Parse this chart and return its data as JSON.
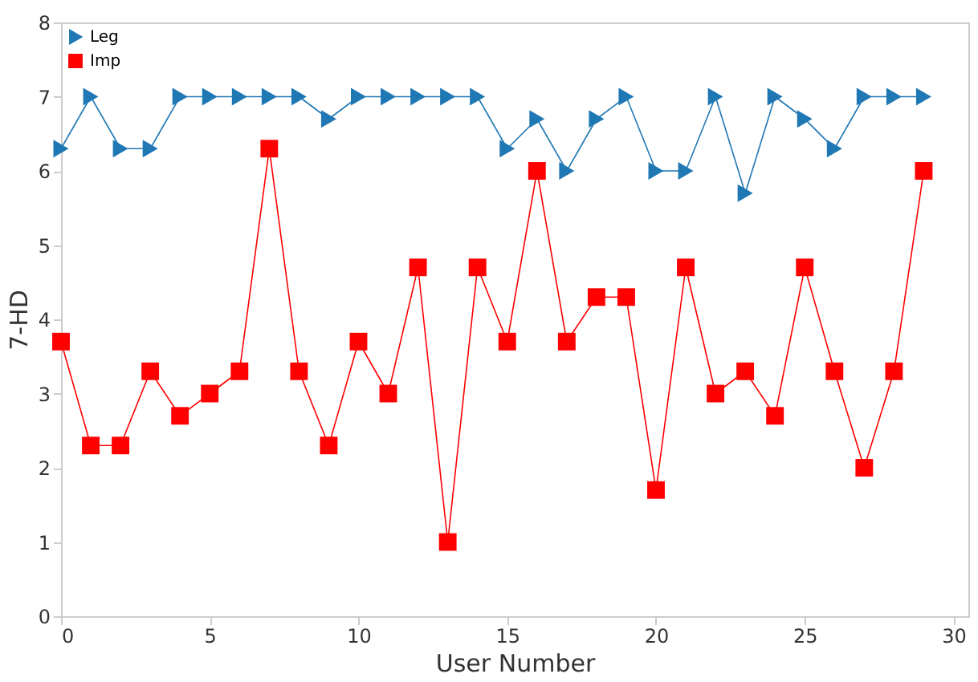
{
  "chart_data": {
    "type": "line",
    "xlabel": "User Number",
    "ylabel": "7-HD",
    "x": [
      0,
      1,
      2,
      3,
      4,
      5,
      6,
      7,
      8,
      9,
      10,
      11,
      12,
      13,
      14,
      15,
      16,
      17,
      18,
      19,
      20,
      21,
      22,
      23,
      24,
      25,
      26,
      27,
      28,
      29
    ],
    "series": [
      {
        "name": "Leg",
        "color": "#1f77b4",
        "marker": "triangle",
        "values": [
          6.3,
          7,
          6.3,
          6.3,
          7,
          7,
          7,
          7,
          7,
          6.7,
          7,
          7,
          7,
          7,
          7,
          6.3,
          6.7,
          6,
          6.7,
          7,
          6,
          6,
          7,
          5.7,
          7,
          6.7,
          6.3,
          7,
          7,
          7
        ]
      },
      {
        "name": "Imp",
        "color": "#ff0000",
        "marker": "square",
        "values": [
          3.7,
          2.3,
          2.3,
          3.3,
          2.7,
          3,
          3.3,
          6.3,
          3.3,
          2.3,
          3.7,
          3,
          4.7,
          1,
          4.7,
          3.7,
          6,
          3.7,
          4.3,
          4.3,
          1.7,
          4.7,
          3,
          3.3,
          2.7,
          4.7,
          3.3,
          2,
          3.3,
          6
        ]
      }
    ],
    "xlim": [
      0,
      30.5
    ],
    "xticks": [
      0,
      5,
      10,
      15,
      20,
      25,
      30
    ],
    "ylim": [
      0,
      8
    ],
    "yticks": [
      0,
      1,
      2,
      3,
      4,
      5,
      6,
      7,
      8
    ],
    "grid": false,
    "legend": "top left",
    "line_style": "solid"
  }
}
